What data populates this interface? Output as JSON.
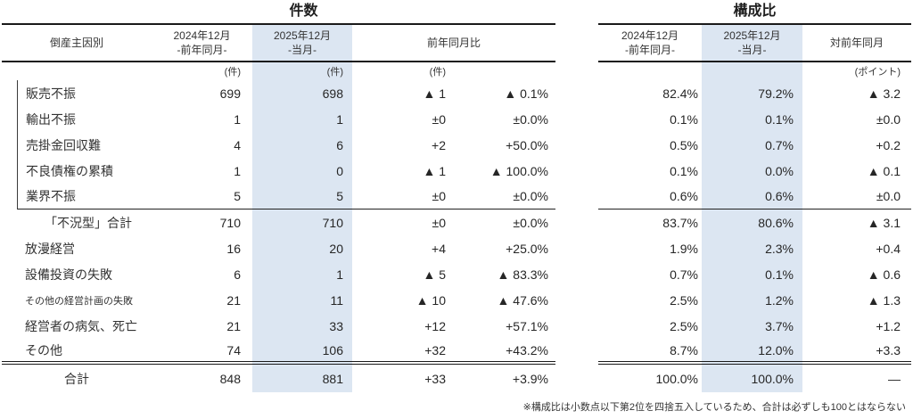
{
  "left_table": {
    "title": "件数",
    "headers": {
      "cause": "倒産主因別",
      "prev_line1": "2024年12月",
      "prev_line2": "-前年同月-",
      "cur_line1": "2025年12月",
      "cur_line2": "-当月-",
      "yoy": "前年同月比"
    },
    "units": {
      "prev": "(件)",
      "cur": "(件)",
      "diff": "(件)"
    }
  },
  "right_table": {
    "title": "構成比",
    "headers": {
      "prev_line1": "2024年12月",
      "prev_line2": "-前年同月-",
      "cur_line1": "2025年12月",
      "cur_line2": "-当月-",
      "yoy": "対前年同月"
    },
    "units": {
      "diff": "(ポイント)"
    }
  },
  "rows": [
    {
      "type": "group",
      "label": "販売不振",
      "count_prev": "699",
      "count_cur": "698",
      "count_diff": "▲ 1",
      "count_diff_pct": "▲ 0.1%",
      "share_prev": "82.4%",
      "share_cur": "79.2%",
      "share_diff": "▲ 3.2"
    },
    {
      "type": "group",
      "label": "輸出不振",
      "count_prev": "1",
      "count_cur": "1",
      "count_diff": "±0",
      "count_diff_pct": "±0.0%",
      "share_prev": "0.1%",
      "share_cur": "0.1%",
      "share_diff": "±0.0"
    },
    {
      "type": "group",
      "label": "売掛金回収難",
      "count_prev": "4",
      "count_cur": "6",
      "count_diff": "+2",
      "count_diff_pct": "+50.0%",
      "share_prev": "0.5%",
      "share_cur": "0.7%",
      "share_diff": "+0.2"
    },
    {
      "type": "group",
      "label": "不良債権の累積",
      "count_prev": "1",
      "count_cur": "0",
      "count_diff": "▲ 1",
      "count_diff_pct": "▲ 100.0%",
      "share_prev": "0.1%",
      "share_cur": "0.0%",
      "share_diff": "▲ 0.1"
    },
    {
      "type": "group-end",
      "label": "業界不振",
      "count_prev": "5",
      "count_cur": "5",
      "count_diff": "±0",
      "count_diff_pct": "±0.0%",
      "share_prev": "0.6%",
      "share_cur": "0.6%",
      "share_diff": "±0.0"
    },
    {
      "type": "subtotal",
      "label": "「不況型」合計",
      "count_prev": "710",
      "count_cur": "710",
      "count_diff": "±0",
      "count_diff_pct": "±0.0%",
      "share_prev": "83.7%",
      "share_cur": "80.6%",
      "share_diff": "▲ 3.1"
    },
    {
      "type": "item",
      "label": "放漫経営",
      "count_prev": "16",
      "count_cur": "20",
      "count_diff": "+4",
      "count_diff_pct": "+25.0%",
      "share_prev": "1.9%",
      "share_cur": "2.3%",
      "share_diff": "+0.4"
    },
    {
      "type": "item",
      "label": "設備投資の失敗",
      "count_prev": "6",
      "count_cur": "1",
      "count_diff": "▲ 5",
      "count_diff_pct": "▲ 83.3%",
      "share_prev": "0.7%",
      "share_cur": "0.1%",
      "share_diff": "▲ 0.6"
    },
    {
      "type": "item-small",
      "label": "その他の経営計画の失敗",
      "count_prev": "21",
      "count_cur": "11",
      "count_diff": "▲ 10",
      "count_diff_pct": "▲ 47.6%",
      "share_prev": "2.5%",
      "share_cur": "1.2%",
      "share_diff": "▲ 1.3"
    },
    {
      "type": "item",
      "label": "経営者の病気、死亡",
      "count_prev": "21",
      "count_cur": "33",
      "count_diff": "+12",
      "count_diff_pct": "+57.1%",
      "share_prev": "2.5%",
      "share_cur": "3.7%",
      "share_diff": "+1.2"
    },
    {
      "type": "item-end",
      "label": "その他",
      "count_prev": "74",
      "count_cur": "106",
      "count_diff": "+32",
      "count_diff_pct": "+43.2%",
      "share_prev": "8.7%",
      "share_cur": "12.0%",
      "share_diff": "+3.3"
    },
    {
      "type": "total",
      "label": "合計",
      "count_prev": "848",
      "count_cur": "881",
      "count_diff": "+33",
      "count_diff_pct": "+3.9%",
      "share_prev": "100.0%",
      "share_cur": "100.0%",
      "share_diff": "—"
    }
  ],
  "footnote": "※構成比は小数点以下第2位を四捨五入しているため、合計は必ずしも100とはならない",
  "colors": {
    "highlight": "#dce6f2"
  }
}
